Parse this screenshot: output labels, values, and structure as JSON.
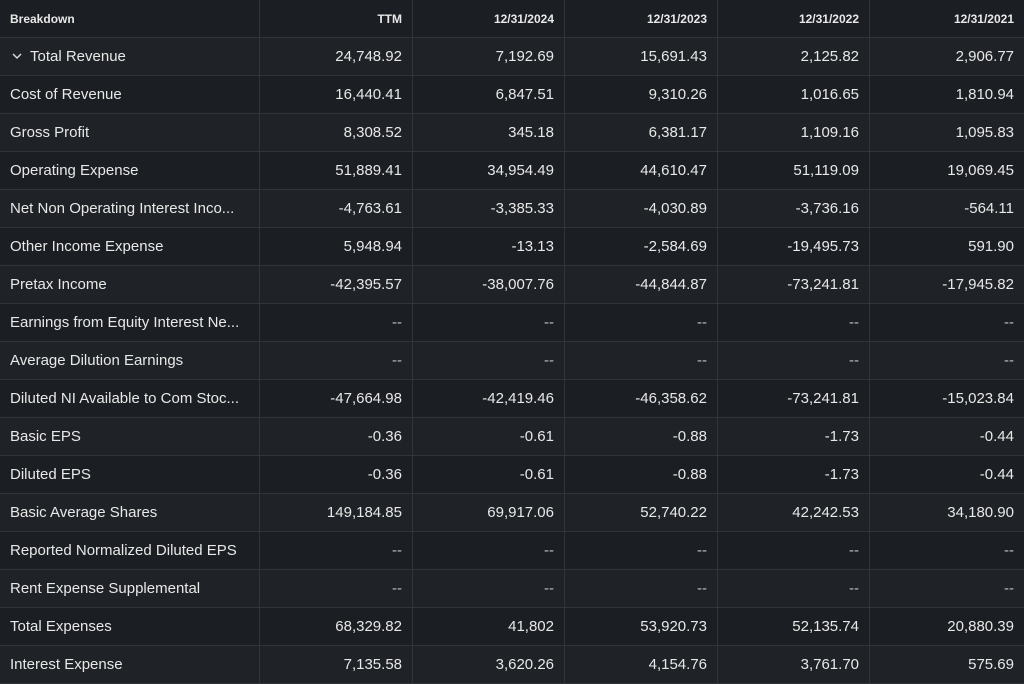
{
  "header": {
    "breakdown_label": "Breakdown",
    "columns": [
      "TTM",
      "12/31/2024",
      "12/31/2023",
      "12/31/2022",
      "12/31/2021"
    ]
  },
  "icons": {
    "expand": "chevron-down-icon"
  },
  "rows": [
    {
      "label": "Total Revenue",
      "expandable": true,
      "values": [
        "24,748.92",
        "7,192.69",
        "15,691.43",
        "2,125.82",
        "2,906.77"
      ]
    },
    {
      "label": "Cost of Revenue",
      "values": [
        "16,440.41",
        "6,847.51",
        "9,310.26",
        "1,016.65",
        "1,810.94"
      ]
    },
    {
      "label": "Gross Profit",
      "values": [
        "8,308.52",
        "345.18",
        "6,381.17",
        "1,109.16",
        "1,095.83"
      ]
    },
    {
      "label": "Operating Expense",
      "values": [
        "51,889.41",
        "34,954.49",
        "44,610.47",
        "51,119.09",
        "19,069.45"
      ]
    },
    {
      "label": "Net Non Operating Interest Inco...",
      "values": [
        "-4,763.61",
        "-3,385.33",
        "-4,030.89",
        "-3,736.16",
        "-564.11"
      ]
    },
    {
      "label": "Other Income Expense",
      "values": [
        "5,948.94",
        "-13.13",
        "-2,584.69",
        "-19,495.73",
        "591.90"
      ]
    },
    {
      "label": "Pretax Income",
      "values": [
        "-42,395.57",
        "-38,007.76",
        "-44,844.87",
        "-73,241.81",
        "-17,945.82"
      ]
    },
    {
      "label": "Earnings from Equity Interest Ne...",
      "values": [
        "--",
        "--",
        "--",
        "--",
        "--"
      ]
    },
    {
      "label": "Average Dilution Earnings",
      "values": [
        "--",
        "--",
        "--",
        "--",
        "--"
      ]
    },
    {
      "label": "Diluted NI Available to Com Stoc...",
      "values": [
        "-47,664.98",
        "-42,419.46",
        "-46,358.62",
        "-73,241.81",
        "-15,023.84"
      ]
    },
    {
      "label": "Basic EPS",
      "values": [
        "-0.36",
        "-0.61",
        "-0.88",
        "-1.73",
        "-0.44"
      ]
    },
    {
      "label": "Diluted EPS",
      "values": [
        "-0.36",
        "-0.61",
        "-0.88",
        "-1.73",
        "-0.44"
      ]
    },
    {
      "label": "Basic Average Shares",
      "values": [
        "149,184.85",
        "69,917.06",
        "52,740.22",
        "42,242.53",
        "34,180.90"
      ]
    },
    {
      "label": "Reported Normalized Diluted EPS",
      "values": [
        "--",
        "--",
        "--",
        "--",
        "--"
      ]
    },
    {
      "label": "Rent Expense Supplemental",
      "values": [
        "--",
        "--",
        "--",
        "--",
        "--"
      ]
    },
    {
      "label": "Total Expenses",
      "values": [
        "68,329.82",
        "41,802",
        "53,920.73",
        "52,135.74",
        "20,880.39"
      ]
    },
    {
      "label": "Interest Expense",
      "values": [
        "7,135.58",
        "3,620.26",
        "4,154.76",
        "3,761.70",
        "575.69"
      ]
    }
  ]
}
